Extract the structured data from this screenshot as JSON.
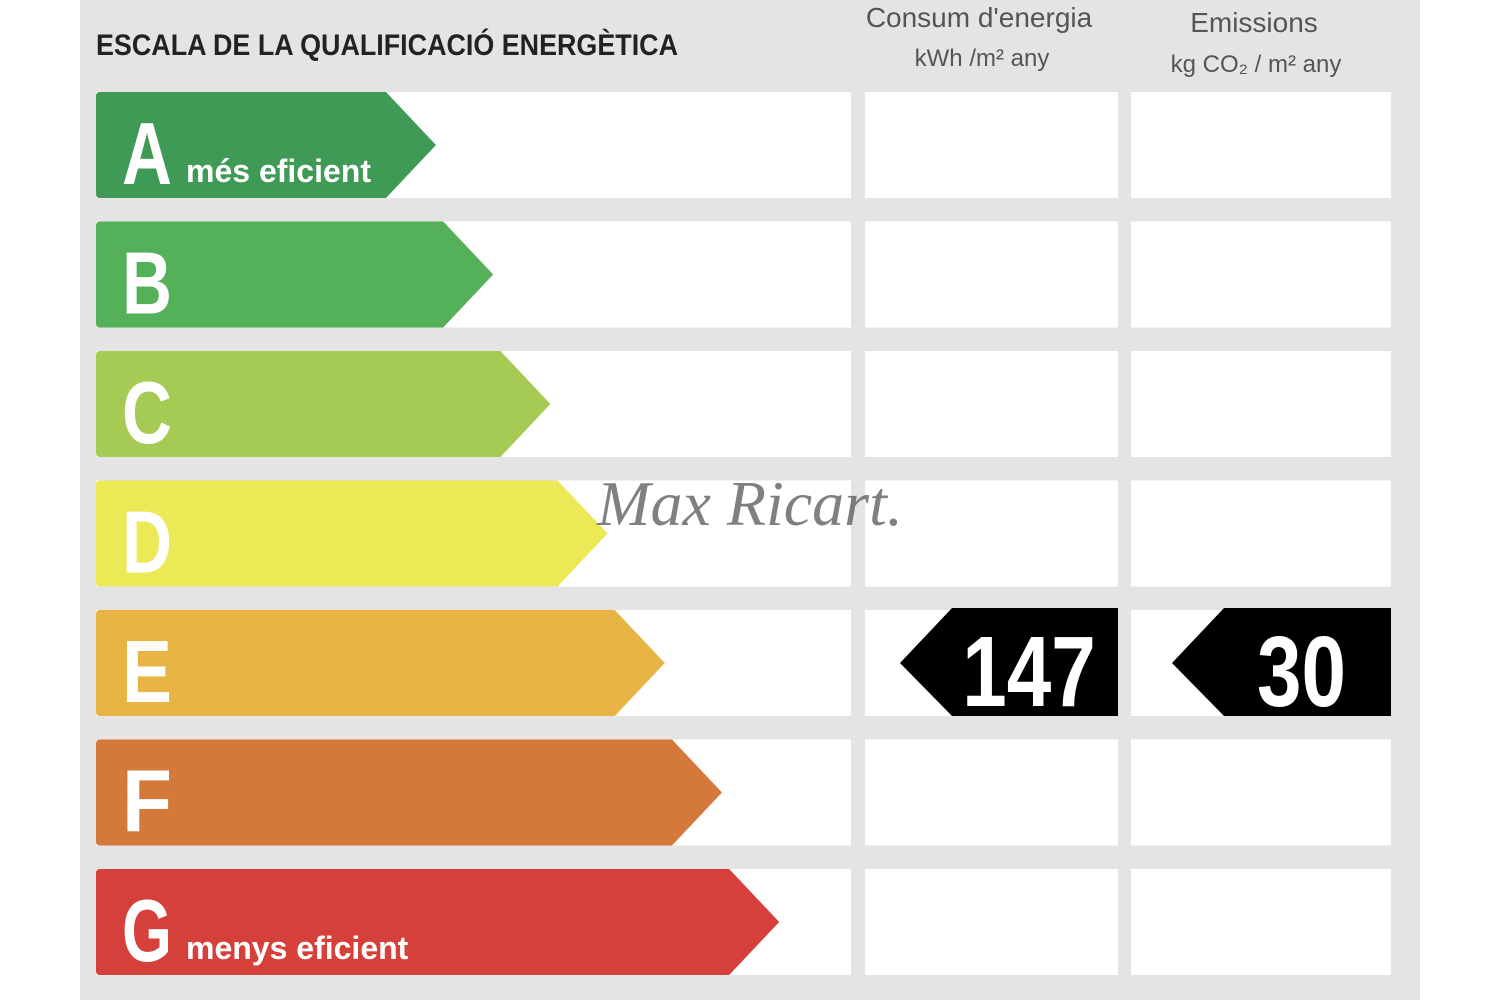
{
  "title": "ESCALA DE LA QUALIFICACIÓ ENERGÈTICA",
  "columns": [
    {
      "title": "Consum d'energia",
      "unit": "kWh /m² any"
    },
    {
      "title": "Emissions",
      "unit": "kg CO₂ / m² any"
    }
  ],
  "rows": [
    {
      "letter": "A",
      "note": "més eficient",
      "color": "#3f9a55"
    },
    {
      "letter": "B",
      "color": "#55b05a"
    },
    {
      "letter": "C",
      "color": "#a5cb55"
    },
    {
      "letter": "D",
      "color": "#ebe955"
    },
    {
      "letter": "E",
      "color": "#e8b545",
      "values": [
        147,
        30
      ]
    },
    {
      "letter": "F",
      "color": "#d5793a"
    },
    {
      "letter": "G",
      "note": "menys eficient",
      "color": "#d6403a"
    }
  ],
  "watermark": "Max Ricart."
}
